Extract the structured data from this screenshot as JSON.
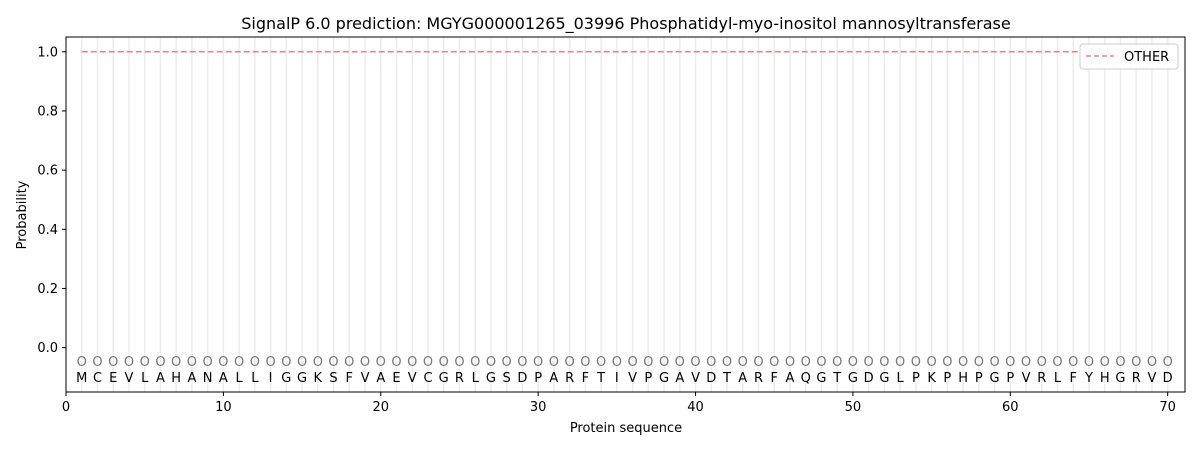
{
  "chart_data": {
    "type": "line",
    "title": "SignalP 6.0 prediction: MGYG000001265_03996 Phosphatidyl-myo-inositol mannosyltransferase",
    "xlabel": "Protein sequence",
    "ylabel": "Probability",
    "xlim": [
      0,
      71.1
    ],
    "ylim": [
      -0.15,
      1.05
    ],
    "xticks": [
      0,
      10,
      20,
      30,
      40,
      50,
      60,
      70
    ],
    "yticks": [
      0.0,
      0.2,
      0.4,
      0.6,
      0.8,
      1.0
    ],
    "ytick_labels": [
      "0.0",
      "0.2",
      "0.4",
      "0.6",
      "0.8",
      "1.0"
    ],
    "grid": "vertical at each residue",
    "legend": {
      "placement": "top-right",
      "entries": [
        "OTHER"
      ]
    },
    "sequence": [
      "M",
      "C",
      "E",
      "V",
      "L",
      "A",
      "H",
      "A",
      "N",
      "A",
      "L",
      "L",
      "I",
      "G",
      "G",
      "K",
      "S",
      "F",
      "V",
      "A",
      "E",
      "V",
      "C",
      "G",
      "R",
      "L",
      "G",
      "S",
      "D",
      "P",
      "A",
      "R",
      "F",
      "T",
      "I",
      "V",
      "P",
      "G",
      "A",
      "V",
      "D",
      "T",
      "A",
      "R",
      "F",
      "A",
      "Q",
      "G",
      "T",
      "G",
      "D",
      "G",
      "L",
      "P",
      "K",
      "P",
      "H",
      "P",
      "G",
      "P",
      "V",
      "R",
      "L",
      "F",
      "Y",
      "H",
      "G",
      "R",
      "V",
      "D"
    ],
    "residue_labels": "O",
    "series": [
      {
        "name": "OTHER",
        "color": "#f08080",
        "style": "dashed",
        "x_range": [
          1,
          70
        ],
        "value": 1.0
      }
    ]
  }
}
